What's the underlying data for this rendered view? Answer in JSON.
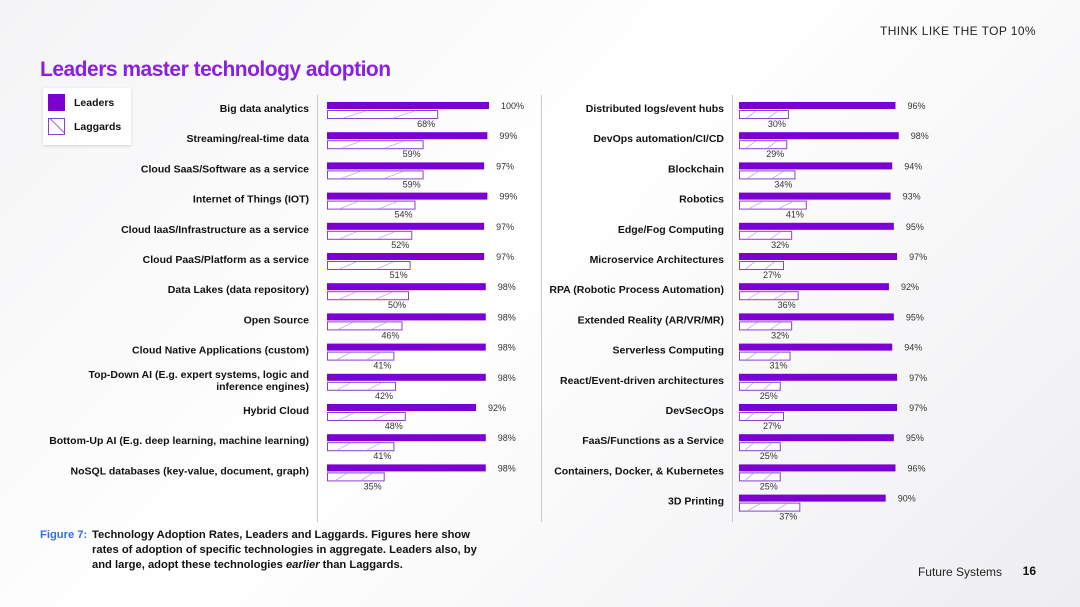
{
  "header": {
    "tag": "THINK LIKE THE TOP 10%"
  },
  "title": "Leaders master technology adoption",
  "legend": {
    "leaders": "Leaders",
    "laggards": "Laggards"
  },
  "colors": {
    "leaders": "#7b00d1",
    "laggards_border": "#8a3fd0",
    "title": "#8b1fe0",
    "caption_label": "#2f6fe0"
  },
  "chart_data": [
    {
      "type": "bar",
      "orientation": "horizontal",
      "title": "",
      "xlabel": "",
      "ylabel": "",
      "xlim": [
        0,
        100
      ],
      "categories": [
        "Big data analytics",
        "Streaming/real-time data",
        "Cloud SaaS/Software as a service",
        "Internet of Things (IOT)",
        "Cloud IaaS/Infrastructure as a service",
        "Cloud PaaS/Platform as a service",
        "Data Lakes (data repository)",
        "Open Source",
        "Cloud Native Applications (custom)",
        "Top-Down AI (E.g. expert systems, logic and\ninference engines)",
        "Hybrid Cloud",
        "Bottom-Up AI (E.g. deep learning, machine learning)",
        "NoSQL databases (key-value, document, graph)"
      ],
      "series": [
        {
          "name": "Leaders",
          "values": [
            100,
            99,
            97,
            99,
            97,
            97,
            98,
            98,
            98,
            98,
            92,
            98,
            98
          ]
        },
        {
          "name": "Laggards",
          "values": [
            68,
            59,
            59,
            54,
            52,
            51,
            50,
            46,
            41,
            42,
            48,
            41,
            35
          ]
        }
      ]
    },
    {
      "type": "bar",
      "orientation": "horizontal",
      "title": "",
      "xlabel": "",
      "ylabel": "",
      "xlim": [
        0,
        100
      ],
      "categories": [
        "Distributed logs/event hubs",
        "DevOps automation/CI/CD",
        "Blockchain",
        "Robotics",
        "Edge/Fog Computing",
        "Microservice Architectures",
        "RPA (Robotic Process Automation)",
        "Extended Reality (AR/VR/MR)",
        "Serverless Computing",
        "React/Event-driven architectures",
        "DevSecOps",
        "FaaS/Functions as a Service",
        "Containers, Docker, & Kubernetes",
        "3D Printing"
      ],
      "series": [
        {
          "name": "Leaders",
          "values": [
            96,
            98,
            94,
            93,
            95,
            97,
            92,
            95,
            94,
            97,
            97,
            95,
            96,
            90
          ]
        },
        {
          "name": "Laggards",
          "values": [
            30,
            29,
            34,
            41,
            32,
            27,
            36,
            32,
            31,
            25,
            27,
            25,
            25,
            37
          ]
        }
      ]
    }
  ],
  "caption": {
    "label": "Figure 7:",
    "text_before": "Technology Adoption Rates, Leaders and Laggards. Figures here show rates of adoption of specific technologies in aggregate. Leaders also, by and large, adopt these technologies ",
    "text_em": "earlier",
    "text_after": " than Laggards."
  },
  "footer": {
    "section": "Future Systems",
    "page": "16"
  }
}
